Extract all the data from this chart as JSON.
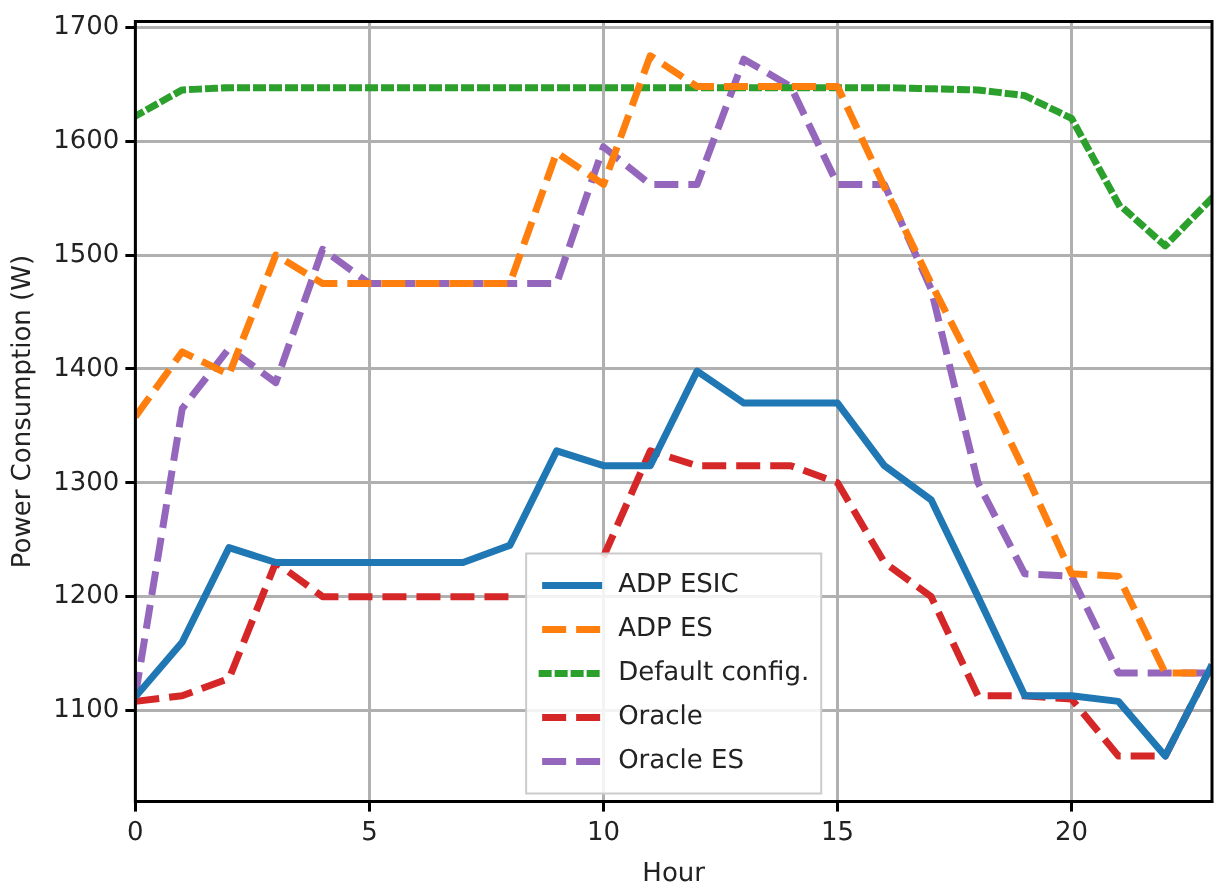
{
  "chart_data": {
    "type": "line",
    "xlabel": "Hour",
    "ylabel": "Power Consumption (W)",
    "x": [
      0,
      1,
      2,
      3,
      4,
      5,
      6,
      7,
      8,
      9,
      10,
      11,
      12,
      13,
      14,
      15,
      16,
      17,
      18,
      19,
      20,
      21,
      22,
      23
    ],
    "xlim": [
      0,
      23
    ],
    "xticks": [
      0,
      5,
      10,
      15,
      20
    ],
    "ylim": [
      1020,
      1705
    ],
    "yticks": [
      1100,
      1200,
      1300,
      1400,
      1500,
      1600,
      1700
    ],
    "grid": true,
    "legend": "bottom",
    "marker": "none",
    "series": [
      {
        "name": "ADP ESIC",
        "color": "#1f77b4",
        "line_style": "solid",
        "values": [
          1112,
          1160,
          1243,
          1230,
          1230,
          1230,
          1230,
          1230,
          1245,
          1328,
          1315,
          1315,
          1398,
          1370,
          1370,
          1370,
          1315,
          1285,
          1200,
          1113,
          1113,
          1108,
          1060,
          1140
        ]
      },
      {
        "name": "ADP ES",
        "color": "#ff7f0e",
        "line_style": "dashed",
        "values": [
          1358,
          1415,
          1395,
          1500,
          1475,
          1475,
          1475,
          1475,
          1475,
          1590,
          1562,
          1675,
          1648,
          1648,
          1648,
          1648,
          1560,
          1475,
          1395,
          1310,
          1220,
          1218,
          1133,
          1133
        ]
      },
      {
        "name": "Default config.",
        "color": "#2ca02c",
        "line_style": "dotted",
        "values": [
          1622,
          1645,
          1647,
          1647,
          1647,
          1647,
          1647,
          1647,
          1647,
          1647,
          1647,
          1647,
          1647,
          1647,
          1647,
          1647,
          1647,
          1646,
          1645,
          1640,
          1620,
          1545,
          1508,
          1550
        ]
      },
      {
        "name": "Oracle",
        "color": "#d62728",
        "line_style": "dashed",
        "values": [
          1108,
          1113,
          1128,
          1230,
          1200,
          1200,
          1200,
          1200,
          1200,
          null,
          1235,
          1328,
          1315,
          1315,
          1315,
          1300,
          1230,
          1200,
          1113,
          1113,
          1110,
          1060,
          1060,
          1140
        ]
      },
      {
        "name": "Oracle ES",
        "color": "#9467bd",
        "line_style": "dashed",
        "values": [
          1113,
          1365,
          1418,
          1388,
          1505,
          1475,
          1475,
          1475,
          1475,
          1475,
          1595,
          1562,
          1562,
          1672,
          1648,
          1562,
          1562,
          1470,
          1300,
          1220,
          1218,
          1133,
          1133,
          1133
        ]
      }
    ]
  }
}
